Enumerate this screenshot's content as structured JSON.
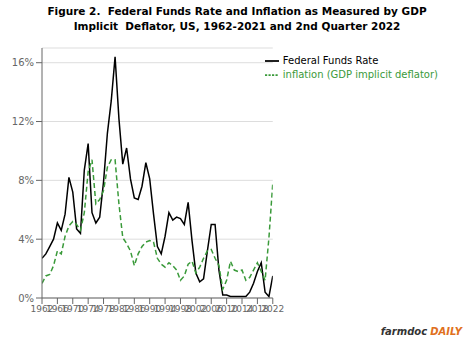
{
  "chart_data": {
    "type": "line",
    "title": "Figure 2.  Federal Funds Rate and Inflation as Measured by GDP\nImplicit  Deflator, US, 1962-2021 and 2nd Quarter 2022",
    "x": [
      1962,
      1963,
      1964,
      1965,
      1966,
      1967,
      1968,
      1969,
      1970,
      1971,
      1972,
      1973,
      1974,
      1975,
      1976,
      1977,
      1978,
      1979,
      1980,
      1981,
      1982,
      1983,
      1984,
      1985,
      1986,
      1987,
      1988,
      1989,
      1990,
      1991,
      1992,
      1993,
      1994,
      1995,
      1996,
      1997,
      1998,
      1999,
      2000,
      2001,
      2002,
      2003,
      2004,
      2005,
      2006,
      2007,
      2008,
      2009,
      2010,
      2011,
      2012,
      2013,
      2014,
      2015,
      2016,
      2017,
      2018,
      2019,
      2020,
      2021,
      2022
    ],
    "series": [
      {
        "name": "Federal Funds Rate",
        "color": "#000000",
        "line_style": "solid",
        "values": [
          2.7,
          3.0,
          3.5,
          4.0,
          5.1,
          4.6,
          5.7,
          8.2,
          7.2,
          4.7,
          4.4,
          8.7,
          10.5,
          5.8,
          5.1,
          5.5,
          7.9,
          11.2,
          13.4,
          16.4,
          12.2,
          9.1,
          10.2,
          8.1,
          6.8,
          6.7,
          7.6,
          9.2,
          8.1,
          5.7,
          3.5,
          3.0,
          4.2,
          5.8,
          5.3,
          5.5,
          5.4,
          5.0,
          6.5,
          3.9,
          1.7,
          1.1,
          1.3,
          3.2,
          5.0,
          5.0,
          1.9,
          0.2,
          0.2,
          0.1,
          0.1,
          0.1,
          0.1,
          0.1,
          0.4,
          1.0,
          1.8,
          2.4,
          0.4,
          0.1,
          1.5
        ]
      },
      {
        "name": "inflation (GDP implicit deflator)",
        "color": "#3a9a3a",
        "line_style": "dashed",
        "values": [
          1.0,
          1.5,
          1.6,
          2.2,
          3.2,
          3.0,
          4.2,
          4.9,
          5.2,
          5.0,
          4.6,
          5.8,
          8.6,
          9.4,
          6.4,
          6.7,
          7.3,
          8.9,
          9.4,
          9.4,
          6.4,
          4.1,
          3.7,
          3.2,
          2.2,
          3.0,
          3.5,
          3.8,
          3.9,
          3.8,
          2.7,
          2.3,
          2.1,
          2.4,
          2.2,
          1.9,
          1.2,
          1.5,
          2.3,
          2.5,
          1.7,
          2.1,
          2.7,
          3.2,
          3.3,
          2.7,
          2.2,
          0.6,
          1.2,
          2.5,
          1.9,
          1.8,
          1.9,
          1.2,
          1.4,
          1.9,
          2.4,
          1.8,
          1.2,
          4.1,
          7.8
        ]
      }
    ],
    "xlim": [
      1962,
      2022
    ],
    "xticks": [
      1962,
      1966,
      1970,
      1974,
      1978,
      1982,
      1986,
      1990,
      1994,
      1998,
      2002,
      2006,
      2010,
      2014,
      2018,
      2022
    ],
    "ylim": [
      0,
      17
    ],
    "yticks": [
      {
        "value": 0,
        "label": "0%"
      },
      {
        "value": 4,
        "label": "4%"
      },
      {
        "value": 8,
        "label": "8%"
      },
      {
        "value": 12,
        "label": "12%"
      },
      {
        "value": 16,
        "label": "16%"
      }
    ],
    "grid": true,
    "legend": "upper right",
    "annotations": [
      {
        "text": "farmdoc",
        "color": "#333333"
      },
      {
        "text": "DAILY",
        "color": "#e07020"
      }
    ]
  }
}
